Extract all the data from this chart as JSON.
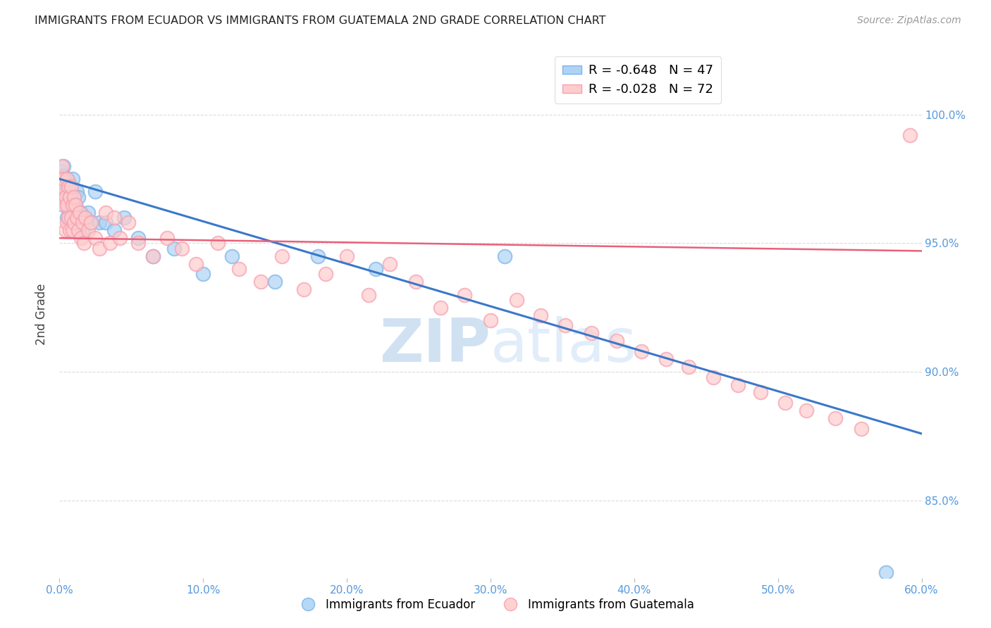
{
  "title": "IMMIGRANTS FROM ECUADOR VS IMMIGRANTS FROM GUATEMALA 2ND GRADE CORRELATION CHART",
  "source": "Source: ZipAtlas.com",
  "ylabel": "2nd Grade",
  "legend_ecuador": "R = -0.648   N = 47",
  "legend_guatemala": "R = -0.028   N = 72",
  "watermark_zip": "ZIP",
  "watermark_atlas": "atlas",
  "xlim": [
    0.0,
    0.6
  ],
  "ylim": [
    0.82,
    1.025
  ],
  "yticks": [
    0.85,
    0.9,
    0.95,
    1.0
  ],
  "xticks": [
    0.0,
    0.1,
    0.2,
    0.3,
    0.4,
    0.5,
    0.6
  ],
  "xtick_labels": [
    "0.0%",
    "10.0%",
    "20.0%",
    "30.0%",
    "40.0%",
    "50.0%",
    "60.0%"
  ],
  "ytick_labels": [
    "85.0%",
    "90.0%",
    "95.0%",
    "100.0%"
  ],
  "color_ecuador": "#7EB3E8",
  "color_ecuador_fill": "#ADD4F5",
  "color_guatemala": "#F5A0B0",
  "color_guatemala_fill": "#FFCCCC",
  "color_ecuador_line": "#3A78C9",
  "color_guatemala_line": "#E8607A",
  "color_axis_labels": "#5599DD",
  "ecuador_x": [
    0.001,
    0.001,
    0.002,
    0.002,
    0.003,
    0.003,
    0.003,
    0.004,
    0.004,
    0.005,
    0.005,
    0.005,
    0.006,
    0.006,
    0.007,
    0.007,
    0.007,
    0.008,
    0.008,
    0.009,
    0.009,
    0.01,
    0.01,
    0.011,
    0.012,
    0.013,
    0.013,
    0.015,
    0.016,
    0.018,
    0.02,
    0.022,
    0.025,
    0.028,
    0.032,
    0.038,
    0.045,
    0.055,
    0.065,
    0.08,
    0.1,
    0.12,
    0.15,
    0.18,
    0.22,
    0.31,
    0.575
  ],
  "ecuador_y": [
    0.978,
    0.972,
    0.975,
    0.97,
    0.98,
    0.976,
    0.965,
    0.972,
    0.968,
    0.975,
    0.97,
    0.96,
    0.974,
    0.966,
    0.972,
    0.968,
    0.958,
    0.97,
    0.962,
    0.975,
    0.965,
    0.968,
    0.958,
    0.965,
    0.97,
    0.968,
    0.96,
    0.962,
    0.955,
    0.96,
    0.962,
    0.958,
    0.97,
    0.958,
    0.958,
    0.955,
    0.96,
    0.952,
    0.945,
    0.948,
    0.938,
    0.945,
    0.935,
    0.945,
    0.94,
    0.945,
    0.822
  ],
  "guatemala_x": [
    0.001,
    0.001,
    0.002,
    0.002,
    0.003,
    0.003,
    0.004,
    0.004,
    0.005,
    0.005,
    0.005,
    0.006,
    0.006,
    0.007,
    0.007,
    0.008,
    0.008,
    0.009,
    0.009,
    0.01,
    0.01,
    0.011,
    0.012,
    0.013,
    0.014,
    0.015,
    0.016,
    0.017,
    0.018,
    0.02,
    0.022,
    0.025,
    0.028,
    0.032,
    0.035,
    0.038,
    0.042,
    0.048,
    0.055,
    0.065,
    0.075,
    0.085,
    0.095,
    0.11,
    0.125,
    0.14,
    0.155,
    0.17,
    0.185,
    0.2,
    0.215,
    0.23,
    0.248,
    0.265,
    0.282,
    0.3,
    0.318,
    0.335,
    0.352,
    0.37,
    0.388,
    0.405,
    0.422,
    0.438,
    0.455,
    0.472,
    0.488,
    0.505,
    0.52,
    0.54,
    0.558,
    0.592
  ],
  "guatemala_y": [
    0.975,
    0.968,
    0.98,
    0.972,
    0.965,
    0.975,
    0.968,
    0.955,
    0.975,
    0.965,
    0.958,
    0.972,
    0.96,
    0.968,
    0.955,
    0.972,
    0.96,
    0.965,
    0.955,
    0.968,
    0.958,
    0.965,
    0.96,
    0.955,
    0.962,
    0.952,
    0.958,
    0.95,
    0.96,
    0.955,
    0.958,
    0.952,
    0.948,
    0.962,
    0.95,
    0.96,
    0.952,
    0.958,
    0.95,
    0.945,
    0.952,
    0.948,
    0.942,
    0.95,
    0.94,
    0.935,
    0.945,
    0.932,
    0.938,
    0.945,
    0.93,
    0.942,
    0.935,
    0.925,
    0.93,
    0.92,
    0.928,
    0.922,
    0.918,
    0.915,
    0.912,
    0.908,
    0.905,
    0.902,
    0.898,
    0.895,
    0.892,
    0.888,
    0.885,
    0.882,
    0.878,
    0.992
  ],
  "blue_line_x": [
    0.0,
    0.6
  ],
  "blue_line_y": [
    0.975,
    0.876
  ],
  "pink_line_x": [
    0.0,
    0.6
  ],
  "pink_line_y": [
    0.952,
    0.947
  ],
  "grid_color": "#CCCCCC",
  "background_color": "#FFFFFF"
}
